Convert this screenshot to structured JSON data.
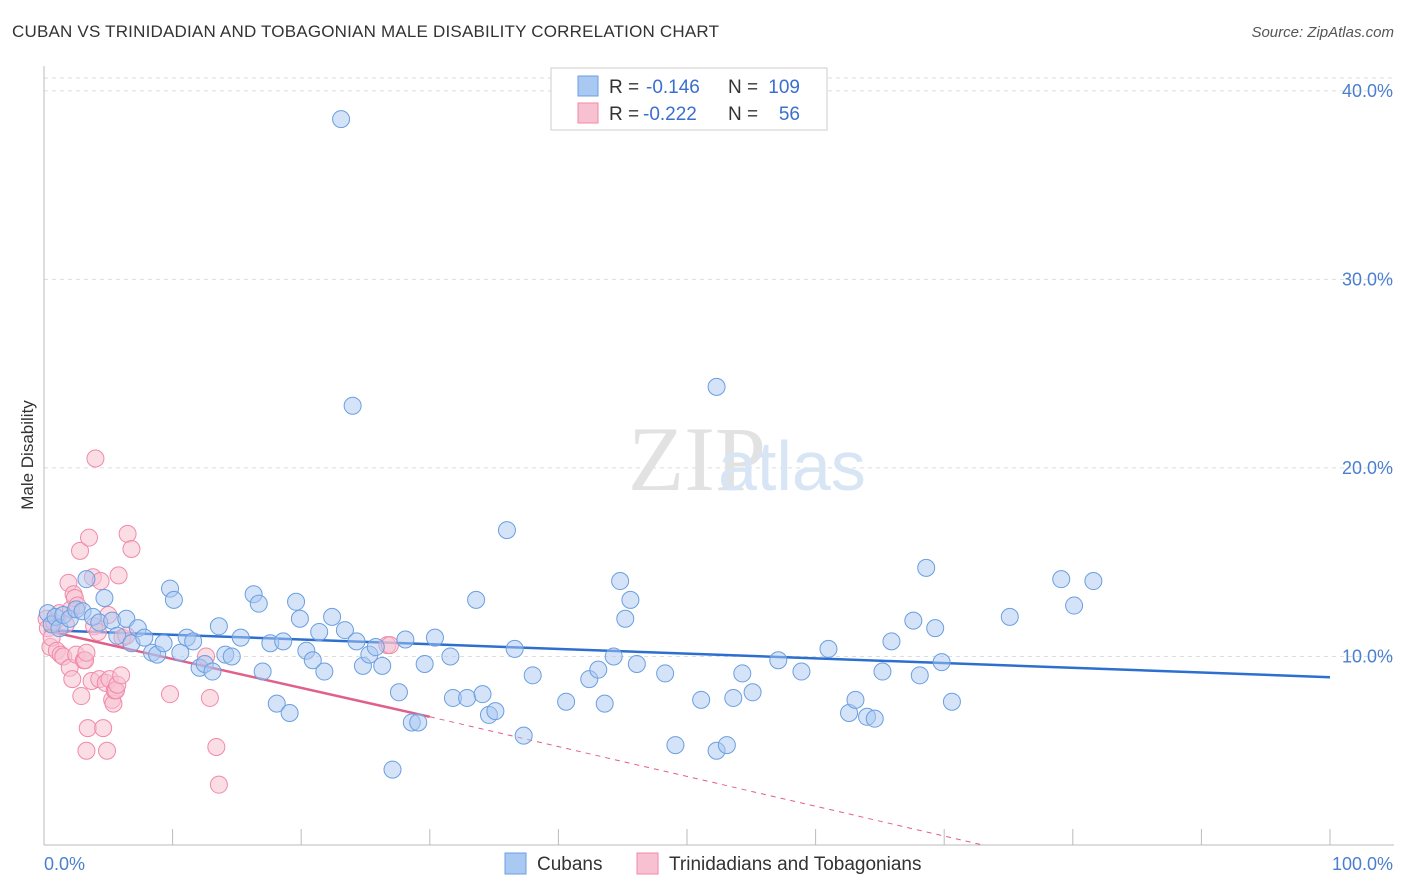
{
  "title": "CUBAN VS TRINIDADIAN AND TOBAGONIAN MALE DISABILITY CORRELATION CHART",
  "source": "Source: ZipAtlas.com",
  "watermark": {
    "zip": "ZIP",
    "atlas": "atlas"
  },
  "colors": {
    "blue": "#6a9fe0",
    "blue_line": "#2d6fd0",
    "pink": "#f08aa8",
    "pink_line": "#e0608a",
    "grid": "#dddddd",
    "tick": "#4a7fd0"
  },
  "legend": {
    "rows": [
      {
        "r_label": "R =",
        "r_value": "-0.146",
        "n_label": "N =",
        "n_value": "109"
      },
      {
        "r_label": "R =",
        "r_value": "-0.222",
        "n_label": "N =",
        "n_value": "56"
      }
    ]
  },
  "bottom_legend": [
    "Cubans",
    "Trinidadians and Tobagonians"
  ],
  "chart_data": {
    "type": "scatter",
    "title": "CUBAN VS TRINIDADIAN AND TOBAGONIAN MALE DISABILITY CORRELATION CHART",
    "xlabel": "",
    "ylabel": "Male Disability",
    "x_tick_labels": [
      "0.0%",
      "100.0%"
    ],
    "y_tick_labels": [
      "10.0%",
      "20.0%",
      "30.0%",
      "40.0%"
    ],
    "y_ticks": [
      10,
      20,
      30,
      40
    ],
    "xlim": [
      0,
      100
    ],
    "ylim": [
      0,
      41
    ],
    "series": [
      {
        "name": "Cubans",
        "trend": [
          [
            0,
            11.4
          ],
          [
            100,
            8.9
          ]
        ],
        "points": [
          [
            0.3,
            12.3
          ],
          [
            0.6,
            11.7
          ],
          [
            0.9,
            12.1
          ],
          [
            1.2,
            11.5
          ],
          [
            1.5,
            12.2
          ],
          [
            2.0,
            12.0
          ],
          [
            2.5,
            12.5
          ],
          [
            3.0,
            12.4
          ],
          [
            3.3,
            14.1
          ],
          [
            3.8,
            12.1
          ],
          [
            4.3,
            11.8
          ],
          [
            4.7,
            13.1
          ],
          [
            5.3,
            11.9
          ],
          [
            5.7,
            11.1
          ],
          [
            6.4,
            12.0
          ],
          [
            6.8,
            10.7
          ],
          [
            7.3,
            11.5
          ],
          [
            7.8,
            11.0
          ],
          [
            8.4,
            10.2
          ],
          [
            8.8,
            10.1
          ],
          [
            9.3,
            10.7
          ],
          [
            9.8,
            13.6
          ],
          [
            10.1,
            13.0
          ],
          [
            10.6,
            10.2
          ],
          [
            11.1,
            11.0
          ],
          [
            11.6,
            10.8
          ],
          [
            12.1,
            9.4
          ],
          [
            12.5,
            9.6
          ],
          [
            13.1,
            9.2
          ],
          [
            13.6,
            11.6
          ],
          [
            14.1,
            10.1
          ],
          [
            14.6,
            10.0
          ],
          [
            15.3,
            11.0
          ],
          [
            16.3,
            13.3
          ],
          [
            16.7,
            12.8
          ],
          [
            17.0,
            9.2
          ],
          [
            17.6,
            10.7
          ],
          [
            18.1,
            7.5
          ],
          [
            18.6,
            10.8
          ],
          [
            19.1,
            7.0
          ],
          [
            19.6,
            12.9
          ],
          [
            19.9,
            12.0
          ],
          [
            20.4,
            10.3
          ],
          [
            20.9,
            9.8
          ],
          [
            21.4,
            11.3
          ],
          [
            21.8,
            9.2
          ],
          [
            22.4,
            12.1
          ],
          [
            23.1,
            38.5
          ],
          [
            23.4,
            11.4
          ],
          [
            24.0,
            23.3
          ],
          [
            24.3,
            10.8
          ],
          [
            24.8,
            9.5
          ],
          [
            25.3,
            10.1
          ],
          [
            25.8,
            10.5
          ],
          [
            26.3,
            9.5
          ],
          [
            27.1,
            4.0
          ],
          [
            27.6,
            8.1
          ],
          [
            28.1,
            10.9
          ],
          [
            28.6,
            6.5
          ],
          [
            29.1,
            6.5
          ],
          [
            29.6,
            9.6
          ],
          [
            30.4,
            11.0
          ],
          [
            31.6,
            10.0
          ],
          [
            31.8,
            7.8
          ],
          [
            32.9,
            7.8
          ],
          [
            33.6,
            13.0
          ],
          [
            34.1,
            8.0
          ],
          [
            34.6,
            6.9
          ],
          [
            35.1,
            7.1
          ],
          [
            36.0,
            16.7
          ],
          [
            36.6,
            10.4
          ],
          [
            37.3,
            5.8
          ],
          [
            38.0,
            9.0
          ],
          [
            40.6,
            7.6
          ],
          [
            42.4,
            8.8
          ],
          [
            43.1,
            9.3
          ],
          [
            43.6,
            7.5
          ],
          [
            44.3,
            10.0
          ],
          [
            44.8,
            14.0
          ],
          [
            45.2,
            12.0
          ],
          [
            45.6,
            13.0
          ],
          [
            46.1,
            9.6
          ],
          [
            48.3,
            9.1
          ],
          [
            49.1,
            5.3
          ],
          [
            51.1,
            7.7
          ],
          [
            52.3,
            24.3
          ],
          [
            52.3,
            5.0
          ],
          [
            53.1,
            5.3
          ],
          [
            53.6,
            7.8
          ],
          [
            54.3,
            9.1
          ],
          [
            55.1,
            8.1
          ],
          [
            57.1,
            9.8
          ],
          [
            58.9,
            9.2
          ],
          [
            61.0,
            10.4
          ],
          [
            62.6,
            7.0
          ],
          [
            63.1,
            7.7
          ],
          [
            64.0,
            6.8
          ],
          [
            64.6,
            6.7
          ],
          [
            65.2,
            9.2
          ],
          [
            65.9,
            10.8
          ],
          [
            67.6,
            11.9
          ],
          [
            68.1,
            9.0
          ],
          [
            68.6,
            14.7
          ],
          [
            69.3,
            11.5
          ],
          [
            69.8,
            9.7
          ],
          [
            70.6,
            7.6
          ],
          [
            75.1,
            12.1
          ],
          [
            79.1,
            14.1
          ],
          [
            80.1,
            12.7
          ],
          [
            81.6,
            14.0
          ]
        ]
      },
      {
        "name": "Trinidadians and Tobagonians",
        "trend": [
          [
            0,
            11.4
          ],
          [
            30,
            6.8
          ]
        ],
        "trend_dashed": [
          [
            30,
            6.8
          ],
          [
            73,
            0.0
          ]
        ],
        "points": [
          [
            0.2,
            12.0
          ],
          [
            0.3,
            11.5
          ],
          [
            0.5,
            10.5
          ],
          [
            0.6,
            11.0
          ],
          [
            0.8,
            11.8
          ],
          [
            1.0,
            10.3
          ],
          [
            1.2,
            12.3
          ],
          [
            1.3,
            10.1
          ],
          [
            1.5,
            10.0
          ],
          [
            1.7,
            11.7
          ],
          [
            1.9,
            13.9
          ],
          [
            2.0,
            9.4
          ],
          [
            2.1,
            12.5
          ],
          [
            2.2,
            8.8
          ],
          [
            2.3,
            13.3
          ],
          [
            2.4,
            13.1
          ],
          [
            2.5,
            10.1
          ],
          [
            2.6,
            12.7
          ],
          [
            2.8,
            15.6
          ],
          [
            2.9,
            7.9
          ],
          [
            3.1,
            9.8
          ],
          [
            3.2,
            9.8
          ],
          [
            3.3,
            10.2
          ],
          [
            3.3,
            5.0
          ],
          [
            3.4,
            6.2
          ],
          [
            3.5,
            16.3
          ],
          [
            3.7,
            8.7
          ],
          [
            3.8,
            14.2
          ],
          [
            3.9,
            11.6
          ],
          [
            4.0,
            20.5
          ],
          [
            4.2,
            11.3
          ],
          [
            4.3,
            8.8
          ],
          [
            4.4,
            14.0
          ],
          [
            4.6,
            6.2
          ],
          [
            4.8,
            8.6
          ],
          [
            4.9,
            5.0
          ],
          [
            5.0,
            12.2
          ],
          [
            5.1,
            8.8
          ],
          [
            5.3,
            7.7
          ],
          [
            5.4,
            7.5
          ],
          [
            5.5,
            8.2
          ],
          [
            5.6,
            8.2
          ],
          [
            5.7,
            8.5
          ],
          [
            5.8,
            14.3
          ],
          [
            6.0,
            9.0
          ],
          [
            6.1,
            11.0
          ],
          [
            6.4,
            11.1
          ],
          [
            6.5,
            16.5
          ],
          [
            6.8,
            15.7
          ],
          [
            9.8,
            8.0
          ],
          [
            12.6,
            10.0
          ],
          [
            12.9,
            7.8
          ],
          [
            13.4,
            5.2
          ],
          [
            13.6,
            3.2
          ],
          [
            26.7,
            10.6
          ],
          [
            26.9,
            10.6
          ]
        ]
      }
    ]
  }
}
